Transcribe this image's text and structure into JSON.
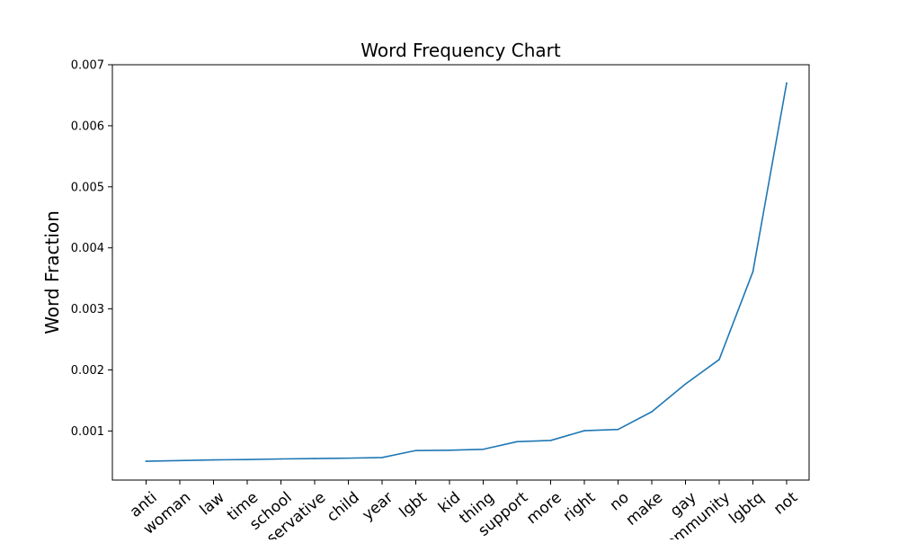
{
  "chart_data": {
    "type": "line",
    "title": "Word Frequency Chart",
    "xlabel": "",
    "ylabel": "Word Fraction",
    "categories": [
      "anti",
      "woman",
      "law",
      "time",
      "school",
      "conservative",
      "child",
      "year",
      "lgbt",
      "kid",
      "thing",
      "support",
      "more",
      "right",
      "no",
      "make",
      "gay",
      "community",
      "lgbtq",
      "not"
    ],
    "series": [
      {
        "name": "",
        "color": "#1f77b4",
        "values": [
          0.000505,
          0.000515,
          0.000527,
          0.000532,
          0.000542,
          0.000548,
          0.000555,
          0.000565,
          0.00068,
          0.000685,
          0.0007,
          0.000825,
          0.000845,
          0.001005,
          0.001025,
          0.001315,
          0.00177,
          0.00217,
          0.00361,
          0.0067
        ]
      }
    ],
    "yticks": [
      0.001,
      0.002,
      0.003,
      0.004,
      0.005,
      0.006,
      0.007
    ],
    "ytick_labels": [
      "0.001",
      "0.002",
      "0.003",
      "0.004",
      "0.005",
      "0.006",
      "0.007"
    ],
    "ylim": [
      0.000196,
      0.007
    ],
    "grid": false,
    "legend": "none"
  }
}
